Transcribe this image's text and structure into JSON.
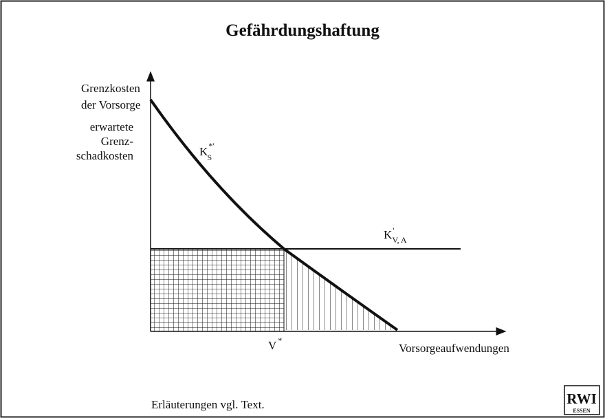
{
  "title": "Gefährdungshaftung",
  "y_axis_label": {
    "lines": [
      "Grenzkosten",
      "der Vorsorge"
    ]
  },
  "y_axis_label_2": {
    "lines": [
      "erwartete",
      "Grenz-",
      "schadkosten"
    ]
  },
  "curve_label": {
    "base": "K",
    "sub": "S",
    "sup": "*'"
  },
  "line_label": {
    "base": "K",
    "sub": "V, A",
    "sup": "'"
  },
  "x_marker": {
    "base": "V",
    "sup": "*"
  },
  "x_axis_label": "Vorsorgeaufwendungen",
  "footnote": "Erläuterungen vgl. Text.",
  "logo": {
    "top": "RWI",
    "bottom": "ESSEN"
  }
}
